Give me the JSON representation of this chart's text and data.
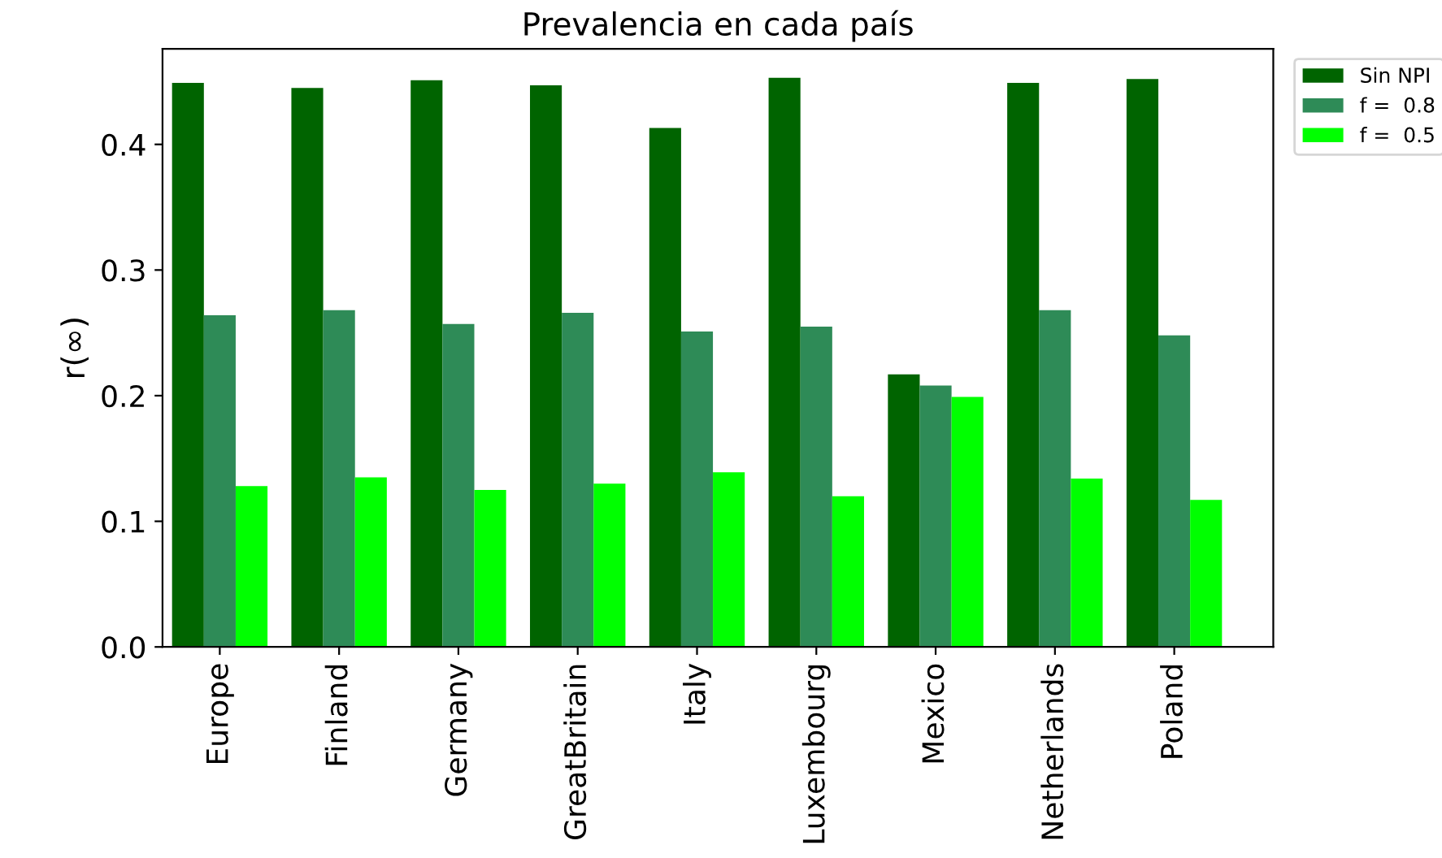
{
  "chart_data": {
    "type": "bar",
    "title": "Prevalencia en cada país",
    "ylabel": "r(∞)",
    "categories": [
      "Europe",
      "Finland",
      "Germany",
      "GreatBritain",
      "Italy",
      "Luxembourg",
      "Mexico",
      "Netherlands",
      "Poland"
    ],
    "series": [
      {
        "name": "Sin NPI",
        "color": "#006400",
        "values": [
          0.449,
          0.445,
          0.451,
          0.447,
          0.413,
          0.453,
          0.217,
          0.449,
          0.452
        ]
      },
      {
        "name": "f =  0.8",
        "color": "#2e8b57",
        "values": [
          0.264,
          0.268,
          0.257,
          0.266,
          0.251,
          0.255,
          0.208,
          0.268,
          0.248
        ]
      },
      {
        "name": "f =  0.5",
        "color": "#00ff00",
        "values": [
          0.128,
          0.135,
          0.125,
          0.13,
          0.139,
          0.12,
          0.199,
          0.134,
          0.117
        ]
      }
    ],
    "ylim": [
      0,
      0.476
    ],
    "yticks": [
      {
        "value": 0,
        "label": "0.0"
      },
      0.1,
      0.2,
      0.3,
      0.4
    ],
    "grid": false,
    "legend": "top right"
  }
}
